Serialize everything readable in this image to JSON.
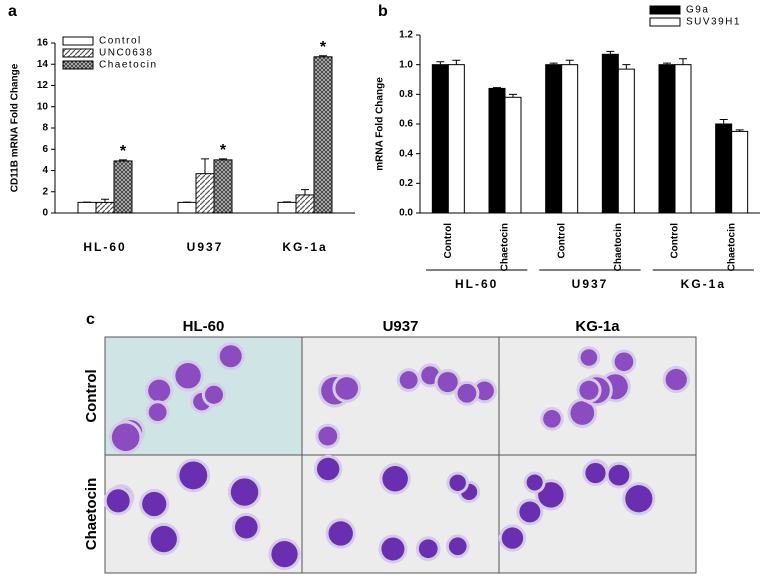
{
  "chart_data": [
    {
      "type": "bar",
      "panel": "a",
      "ylabel": "CD11B mRNA Fold Change",
      "categories": [
        "HL-60",
        "U937",
        "KG-1a"
      ],
      "series": [
        {
          "name": "Control",
          "color": "#ffffff",
          "pattern": "solid",
          "values": [
            1,
            1,
            1
          ],
          "errors": [
            0.02,
            0.02,
            0.05
          ]
        },
        {
          "name": "UNC0638",
          "color": "#bbbbbb",
          "pattern": "diagonal",
          "values": [
            1.0,
            3.7,
            1.7
          ],
          "errors": [
            0.3,
            1.4,
            0.5
          ]
        },
        {
          "name": "Chaetocin",
          "color": "#444444",
          "pattern": "crosshatch",
          "values": [
            4.9,
            5.0,
            14.7
          ],
          "errors": [
            0.1,
            0.1,
            0.1
          ],
          "annotations": [
            "*",
            "*",
            "*"
          ]
        }
      ],
      "ylim": [
        0,
        16
      ],
      "yticks": [
        0,
        2,
        4,
        6,
        8,
        10,
        12,
        14,
        16
      ],
      "legend": "top-left"
    },
    {
      "type": "bar",
      "panel": "b",
      "ylabel": "mRNA Fold Change",
      "categories": [
        "Control",
        "Chaetocin",
        "Control",
        "Chaetocin",
        "Control",
        "Chaetocin"
      ],
      "groups": [
        "HL-60",
        "U937",
        "KG-1a"
      ],
      "series": [
        {
          "name": "G9a",
          "color": "#000000",
          "pattern": "solid",
          "values": [
            1.0,
            0.84,
            1.0,
            1.07,
            1.0,
            0.6
          ],
          "errors": [
            0.02,
            0.005,
            0.01,
            0.02,
            0.01,
            0.03
          ]
        },
        {
          "name": "SUV39H1",
          "color": "#ffffff",
          "pattern": "solid",
          "values": [
            1.0,
            0.78,
            1.0,
            0.97,
            1.0,
            0.55
          ],
          "errors": [
            0.03,
            0.02,
            0.03,
            0.03,
            0.04,
            0.01
          ]
        }
      ],
      "ylim": [
        0,
        1.2
      ],
      "yticks": [
        {
          "value": 0,
          "label": "0.0"
        },
        0.2,
        0.4,
        0.6,
        0.8,
        {
          "value": 1,
          "label": "1.0"
        },
        1.2
      ],
      "legend": "top-right"
    }
  ],
  "panel_c": {
    "label": "c",
    "columns": [
      "HL-60",
      "U937",
      "KG-1a"
    ],
    "rows": [
      "Control",
      "Chaetocin"
    ]
  }
}
